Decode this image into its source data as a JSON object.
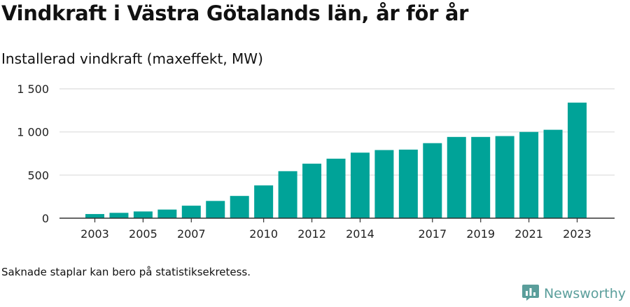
{
  "title": "Vindkraft i Västra Götalands län, år för år",
  "subtitle": "Installerad vindkraft (maxeffekt, MW)",
  "footnote": "Saknade staplar kan bero på statistiksekretess.",
  "brand": {
    "name": "Newsworthy",
    "logo_icon": "bar-chart-speech-bubble-icon",
    "color": "#5a9e9b"
  },
  "chart_data": {
    "type": "bar",
    "color": "#00a398",
    "categories": [
      "2003",
      "2004",
      "2005",
      "2006",
      "2007",
      "2008",
      "2009",
      "2010",
      "2011",
      "2012",
      "2013",
      "2014",
      "2015",
      "2016",
      "2017",
      "2018",
      "2019",
      "2020",
      "2021",
      "2022",
      "2023"
    ],
    "values": [
      48,
      62,
      78,
      100,
      145,
      200,
      258,
      380,
      545,
      632,
      690,
      760,
      790,
      795,
      870,
      942,
      942,
      952,
      1000,
      1025,
      1340
    ],
    "xtick_labels": [
      "2003",
      "2005",
      "2007",
      "2010",
      "2012",
      "2014",
      "2017",
      "2019",
      "2021",
      "2023"
    ],
    "yticks": [
      0,
      500,
      1000,
      1500
    ],
    "ytick_labels": [
      "0",
      "500",
      "1 000",
      "1 500"
    ],
    "ylim": [
      0,
      1500
    ],
    "grid": true,
    "xlabel": "",
    "ylabel": ""
  }
}
